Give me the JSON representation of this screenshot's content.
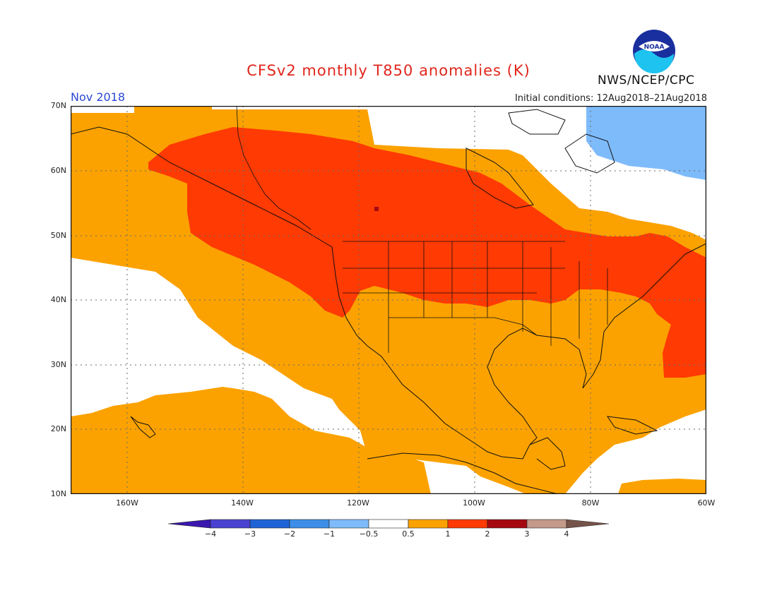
{
  "header": {
    "title": "CFSv2 monthly T850 anomalies (K)",
    "month": "Nov 2018",
    "initial_conditions": "Initial conditions: 12Aug2018–21Aug2018",
    "agency": "NWS/NCEP/CPC",
    "logo_text": "NOAA"
  },
  "map": {
    "lat_labels": [
      "70N",
      "60N",
      "50N",
      "40N",
      "30N",
      "20N",
      "10N"
    ],
    "lon_labels": [
      "160W",
      "140W",
      "120W",
      "100W",
      "80W",
      "60W"
    ],
    "colors": {
      "light_orange": "#fba200",
      "red_orange": "#ff3a03",
      "dark_red": "#a50810",
      "light_blue": "#7ebbfa",
      "grid": "#6a6a6a"
    }
  },
  "colorbar": {
    "labels": [
      "−4",
      "−3",
      "−2",
      "−1",
      "−0.5",
      "0.5",
      "1",
      "2",
      "3",
      "4"
    ],
    "colors": [
      "#3a18b0",
      "#4a42d0",
      "#1f64d6",
      "#3c8ee8",
      "#7ebbfa",
      "#ffffff",
      "#fba200",
      "#ff3a03",
      "#a50810",
      "#c3998a",
      "#76544a"
    ]
  }
}
